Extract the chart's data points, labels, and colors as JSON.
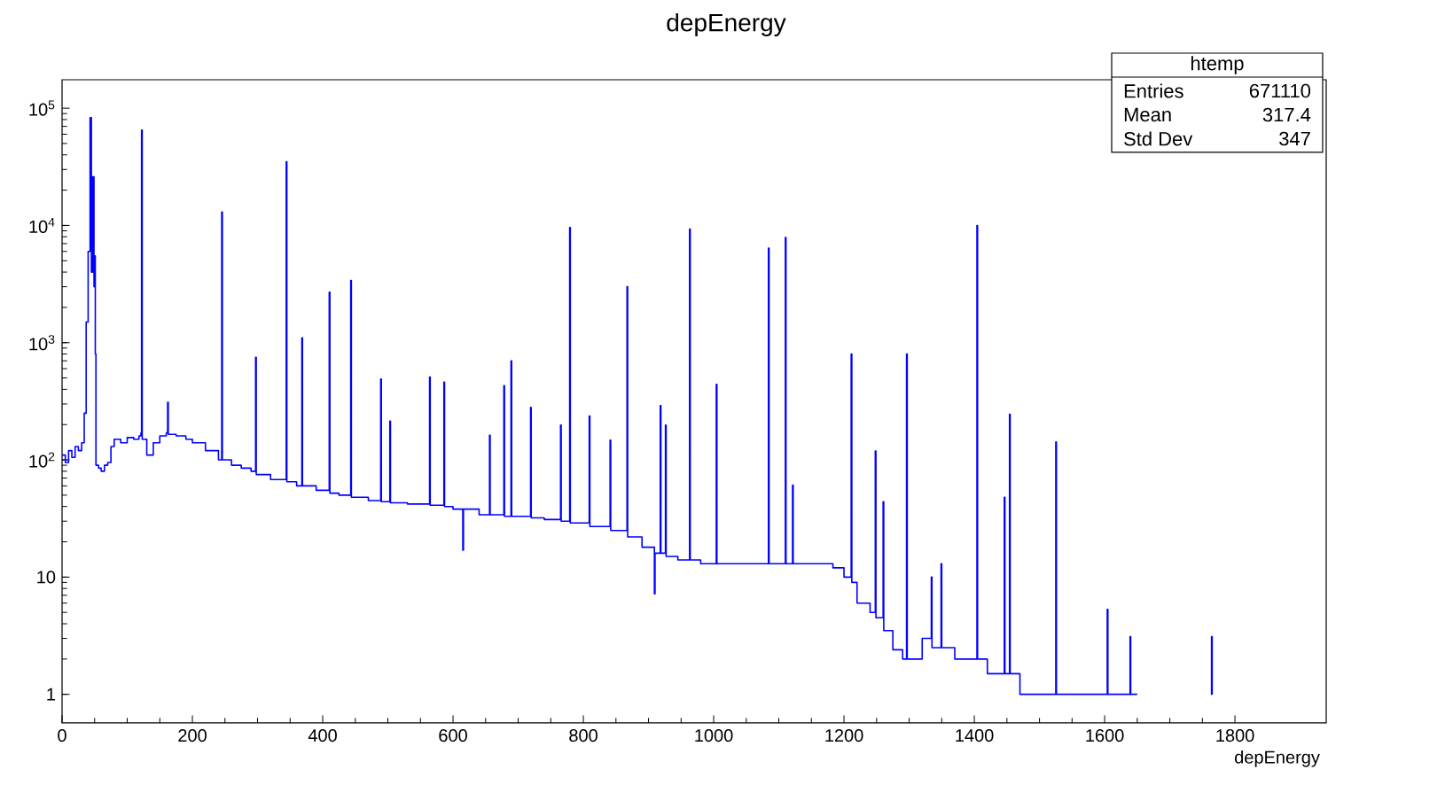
{
  "chart_data": {
    "type": "step",
    "title": "depEnergy",
    "xlabel": "depEnergy",
    "log": "y",
    "grid": false,
    "xlim": [
      0,
      1940
    ],
    "xticks": [
      0,
      200,
      400,
      600,
      800,
      1000,
      1200,
      1400,
      1600,
      1800
    ],
    "ylim": [
      0.57,
      175000
    ],
    "yticks": [
      1,
      10,
      {
        "value": 100,
        "label": "10$^{2}$"
      },
      {
        "value": 1000,
        "label": "10$^{3}$"
      },
      {
        "value": 10000,
        "label": "10$^{4}$"
      },
      {
        "value": 100000,
        "label": "10$^{5}$"
      }
    ],
    "annotations": [
      "htemp",
      "Entries",
      "671110",
      "Mean",
      "317.4",
      "Std Dev",
      "347"
    ],
    "series": [
      {
        "color": "#0000ff",
        "x": [
          0,
          5,
          10,
          15,
          20,
          25,
          30,
          34,
          37,
          40,
          43,
          45,
          47,
          49,
          50,
          51,
          52,
          56,
          60,
          65,
          70,
          75,
          80,
          90,
          100,
          110,
          118,
          121,
          122,
          123,
          130,
          140,
          150,
          160,
          162,
          163,
          175,
          190,
          200,
          220,
          240,
          245,
          246,
          260,
          275,
          290,
          297,
          298,
          320,
          344,
          345,
          360,
          368,
          369,
          390,
          410,
          411,
          425,
          443,
          444,
          470,
          489,
          490,
          503,
          504,
          530,
          564,
          565,
          586,
          587,
          600,
          615,
          616,
          640,
          656,
          657,
          678,
          679,
          689,
          690,
          719,
          720,
          740,
          765,
          766,
          779,
          780,
          809,
          810,
          841,
          842,
          867,
          868,
          890,
          909,
          910,
          918,
          919,
          926,
          927,
          945,
          963,
          964,
          980,
          1004,
          1005,
          1040,
          1084,
          1085,
          1110,
          1111,
          1121,
          1122,
          1150,
          1183,
          1200,
          1211,
          1212,
          1220,
          1240,
          1248,
          1249,
          1260,
          1261,
          1275,
          1290,
          1296,
          1297,
          1320,
          1334,
          1335,
          1349,
          1350,
          1370,
          1390,
          1404,
          1405,
          1420,
          1446,
          1447,
          1454,
          1455,
          1470,
          1500,
          1525,
          1526,
          1560,
          1604,
          1605,
          1639,
          1640,
          1650,
          1651,
          1763,
          1764,
          1765
        ],
        "values": [
          110,
          95,
          120,
          105,
          130,
          120,
          140,
          250,
          1500,
          6000,
          83000,
          4000,
          26000,
          3000,
          5500,
          800,
          90,
          85,
          80,
          90,
          95,
          130,
          150,
          140,
          155,
          150,
          160,
          170,
          65000,
          150,
          110,
          140,
          160,
          170,
          310,
          165,
          160,
          150,
          140,
          120,
          100,
          13000,
          100,
          90,
          85,
          80,
          750,
          75,
          68,
          35000,
          65,
          60,
          1100,
          60,
          55,
          2700,
          52,
          50,
          3400,
          48,
          45,
          490,
          44,
          214,
          43,
          42,
          510,
          41,
          460,
          40,
          38,
          17,
          38,
          34,
          162,
          34,
          430,
          33,
          700,
          33,
          280,
          32,
          31,
          198,
          30,
          9600,
          29,
          237,
          27,
          147,
          25,
          3000,
          22,
          18,
          7.2,
          16,
          290,
          16,
          198,
          15,
          14,
          9300,
          14,
          13,
          440,
          13,
          13,
          6400,
          13,
          7900,
          13,
          61,
          13,
          13,
          12,
          10,
          800,
          9,
          6,
          5,
          119,
          4.5,
          44,
          3.5,
          2.4,
          2,
          800,
          2,
          3,
          10,
          2.5,
          13,
          2.5,
          2,
          2,
          10000,
          2,
          1.5,
          48,
          1.5,
          245,
          1.5,
          1,
          1,
          142,
          1,
          1,
          5.3,
          1,
          3.1,
          1,
          1,
          null,
          1,
          3.1,
          1
        ]
      }
    ]
  }
}
